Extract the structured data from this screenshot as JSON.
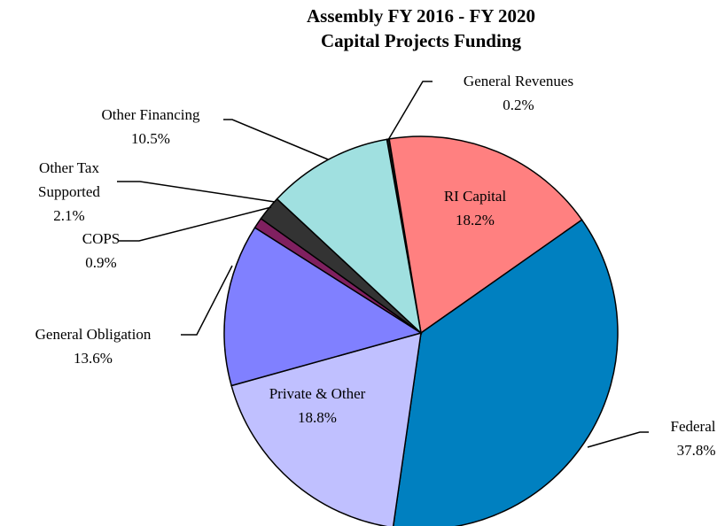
{
  "chart_data": {
    "type": "pie",
    "title": "Assembly FY 2016 - FY 2020",
    "subtitle": "Capital Projects Funding",
    "categories": [
      "General Revenues",
      "RI Capital",
      "Federal",
      "Private & Other",
      "General Obligation",
      "COPS",
      "Other Tax Supported",
      "Other Financing"
    ],
    "values": [
      0.2,
      18.2,
      37.8,
      18.8,
      13.6,
      0.9,
      2.1,
      10.5
    ],
    "value_labels": [
      "0.2%",
      "18.2%",
      "37.8%",
      "18.8%",
      "13.6%",
      "0.9%",
      "2.1%",
      "10.5%"
    ],
    "colors": [
      "#1a1a1a",
      "#ff8080",
      "#0080c0",
      "#c0c0ff",
      "#8080ff",
      "#802060",
      "#333333",
      "#a0e0e0"
    ]
  }
}
